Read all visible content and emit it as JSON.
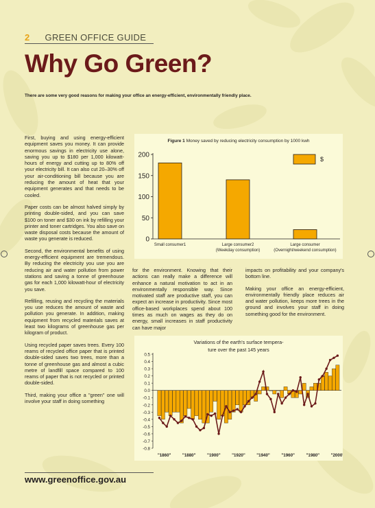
{
  "header": {
    "page_number": "2",
    "guide_title": "GREEN OFFICE GUIDE"
  },
  "title": "Why Go Green?",
  "intro": "There are some very good reasons for making your office an energy-efficient, environmentally friendly place.",
  "left_column": [
    "First, buying and using energy-efficient equipment saves you money. It can provide enormous savings in electricity use alone, saving you up to $180 per 1,000 kilowatt-hours of energy and cutting up to 80% off your electricity bill. It can also cut 20–30% off your air-conditioning bill because you are reducing the amount of heat that your equipment generates and that needs to be cooled.",
    "Paper costs can be almost halved simply by printing double-sided, and you can save $100 on toner and $30 on ink by refilling your printer and toner cartridges. You also save on waste disposal costs because the amount of waste you generate is reduced.",
    "Second, the environmental benefits of using energy-efficient equipment are tremendous. By reducing the electricity you use you are reducing air and water pollution from power stations and saving a tonne of greenhouse gas for each 1,000 kilowatt-hour of electricity you save.",
    "Refilling, reusing and recycling the materials you use reduces the amount of waste and pollution you generate. In addition, making equipment from recycled materials saves at least two kilograms of greenhouse gas per kilogram of product.",
    "Using recycled paper saves trees. Every 100 reams of recycled office paper that is printed double-sided saves two trees, more than a tonne of greenhouse gas and almost a cubic metre of landfill space compared to 100 reams of paper that is not recycled or printed double-sided.",
    "Third, making your office a \"green\" one will involve your staff in doing something"
  ],
  "middle_column": "for the environment. Knowing that their actions can really make a difference will enhance a natural motivation to act in an environmentally responsible way. Since motivated staff are productive staff, you can expect an increase in productivity. Since most office-based workplaces spend about 100 times as much on wages as they do on energy, small increases in staff productivity can have major",
  "right_column": [
    "impacts on profitability and your company's bottom line.",
    "Making your office an energy-efficient, environmentally friendly place reduces air and water pollution, keeps more trees in the ground and involves your staff in doing something good for the environment."
  ],
  "footer_url": "www.greenoffice.gov.au",
  "colors": {
    "bar": "#f5a800",
    "title": "#6b1a1a",
    "line": "#6b1a1a",
    "accent": "#e8a317"
  },
  "chart_data": [
    {
      "type": "bar",
      "title_bold": "Figure 1",
      "title": "Money saved by reducing electricity consumption by 1000 kwh",
      "categories": [
        "Small consumer1",
        "Large consumer2 (Weekday consumption)",
        "Large consumer (Overnight/weekend consumption)"
      ],
      "category_lines": [
        [
          "Small consumer1"
        ],
        [
          "Large consumer2",
          "(Weekday consumption)"
        ],
        [
          "Large consumer",
          "(Overnight/weekend consumption)"
        ]
      ],
      "series": [
        {
          "name": "$",
          "values": [
            180,
            140,
            22
          ]
        }
      ],
      "yticks": [
        "200",
        "150",
        "100",
        "50",
        "0"
      ],
      "ylim": [
        0,
        200
      ],
      "legend": "top-right"
    },
    {
      "type": "bar",
      "title_lines": [
        "Variations of the earth's surface tempera-",
        "ture over the past 145 years"
      ],
      "x": [
        1856,
        1859,
        1862,
        1865,
        1868,
        1871,
        1874,
        1877,
        1880,
        1883,
        1886,
        1889,
        1892,
        1895,
        1898,
        1901,
        1904,
        1907,
        1910,
        1913,
        1916,
        1919,
        1922,
        1925,
        1928,
        1931,
        1934,
        1937,
        1940,
        1943,
        1946,
        1949,
        1952,
        1955,
        1958,
        1961,
        1964,
        1967,
        1970,
        1973,
        1976,
        1979,
        1982,
        1985,
        1988,
        1991,
        1994,
        1997,
        2000
      ],
      "values": [
        -0.35,
        -0.4,
        -0.3,
        -0.35,
        -0.3,
        -0.3,
        -0.45,
        -0.35,
        -0.25,
        -0.4,
        -0.35,
        -0.4,
        -0.45,
        -0.45,
        -0.3,
        -0.15,
        -0.4,
        -0.35,
        -0.45,
        -0.4,
        -0.3,
        -0.2,
        -0.3,
        -0.2,
        -0.2,
        -0.1,
        -0.15,
        -0.05,
        0.05,
        0.05,
        0.0,
        -0.05,
        0.0,
        -0.1,
        0.05,
        -0.05,
        -0.1,
        -0.1,
        -0.05,
        0.1,
        -0.1,
        0.05,
        0.1,
        0.1,
        0.2,
        0.25,
        0.2,
        0.3,
        0.35
      ],
      "line": [
        -0.38,
        -0.45,
        -0.5,
        -0.35,
        -0.4,
        -0.45,
        -0.42,
        -0.36,
        -0.38,
        -0.4,
        -0.5,
        -0.55,
        -0.52,
        -0.33,
        -0.35,
        -0.32,
        -0.6,
        -0.35,
        -0.22,
        -0.3,
        -0.28,
        -0.26,
        -0.3,
        -0.22,
        -0.15,
        -0.1,
        -0.05,
        0.12,
        0.26,
        -0.05,
        -0.12,
        -0.3,
        -0.05,
        -0.18,
        -0.1,
        -0.05,
        0.0,
        -0.02,
        0.18,
        -0.2,
        -0.05,
        -0.22,
        -0.18,
        0.15,
        0.2,
        0.3,
        0.42,
        0.45,
        0.48
      ],
      "yticks": [
        "0.5",
        "0.4",
        "0.3",
        "0.2",
        "0.1",
        "0.0",
        "-0.1",
        "-0.2",
        "-0.3",
        "-0.4",
        "-0.5",
        "-0.6",
        "-0.7",
        "-0.8"
      ],
      "ylim": [
        -0.8,
        0.5
      ],
      "xtick_labels": [
        "\"1860\"",
        "\"1880\"",
        "\"1900\"",
        "\"1920\"",
        "\"1940\"",
        "\"1960\"",
        "\"1980\"",
        "\"2000\""
      ],
      "xtick_values": [
        1860,
        1880,
        1900,
        1920,
        1940,
        1960,
        1980,
        2000
      ]
    }
  ]
}
